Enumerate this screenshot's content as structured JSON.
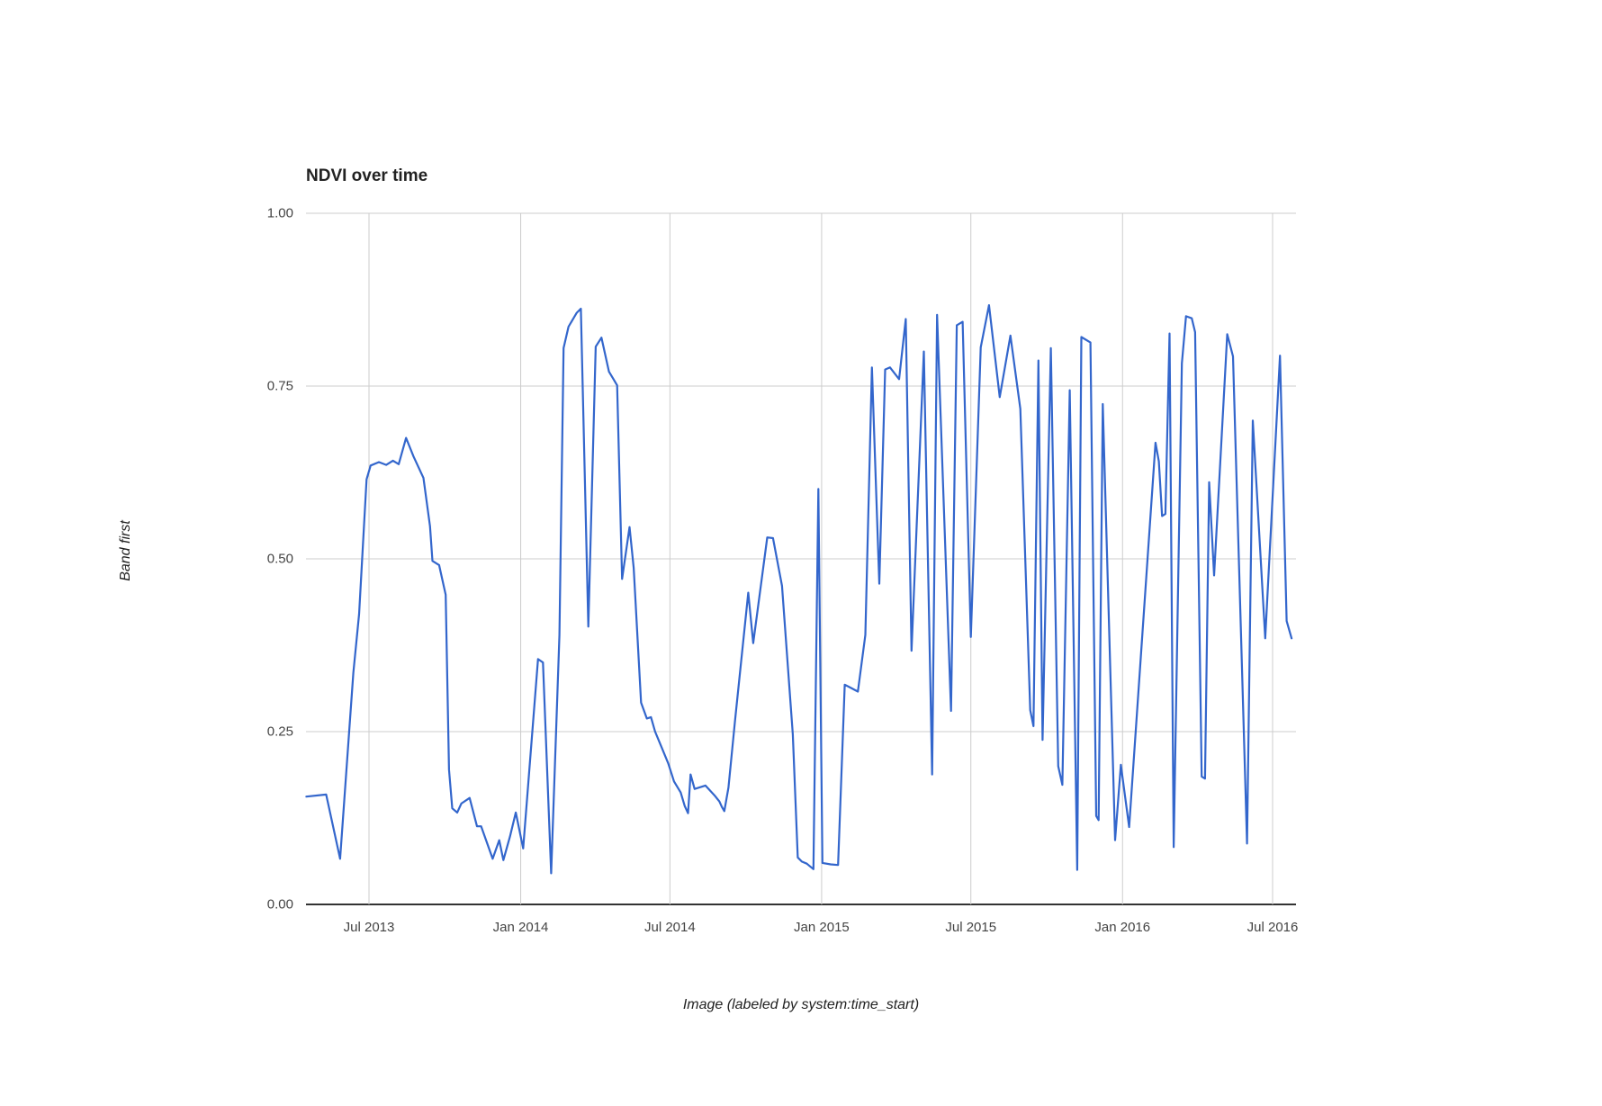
{
  "chart": {
    "title": "NDVI over time",
    "y_axis_title": "Band first",
    "x_axis_title": "Image (labeled by system:time_start)",
    "colors": {
      "line": "#3366cc",
      "grid": "#cccccc",
      "baseline": "#333333",
      "tick_text": "#444444",
      "title_text": "#222222",
      "background": "#ffffff"
    },
    "y_ticks": [
      {
        "label": "0.00",
        "value": 0.0
      },
      {
        "label": "0.25",
        "value": 0.25
      },
      {
        "label": "0.50",
        "value": 0.5
      },
      {
        "label": "0.75",
        "value": 0.75
      },
      {
        "label": "1.00",
        "value": 1.0
      }
    ],
    "x_ticks": [
      {
        "label": "Jul 2013",
        "date": "2013-07-01"
      },
      {
        "label": "Jan 2014",
        "date": "2014-01-01"
      },
      {
        "label": "Jul 2014",
        "date": "2014-07-01"
      },
      {
        "label": "Jan 2015",
        "date": "2015-01-01"
      },
      {
        "label": "Jul 2015",
        "date": "2015-07-01"
      },
      {
        "label": "Jan 2016",
        "date": "2016-01-01"
      },
      {
        "label": "Jul 2016",
        "date": "2016-07-01"
      }
    ]
  },
  "chart_data": {
    "type": "line",
    "title": "NDVI over time",
    "xlabel": "Image (labeled by system:time_start)",
    "ylabel": "Band first",
    "ylim": [
      0,
      1
    ],
    "x_range": [
      "2013-04-10",
      "2016-07-28"
    ],
    "grid": true,
    "legend": "none",
    "series": [
      {
        "name": "first",
        "color": "#3366cc",
        "points": [
          [
            "2013-04-16",
            0.156
          ],
          [
            "2013-05-10",
            0.159
          ],
          [
            "2013-05-27",
            0.066
          ],
          [
            "2013-06-12",
            0.335
          ],
          [
            "2013-06-19",
            0.42
          ],
          [
            "2013-06-28",
            0.615
          ],
          [
            "2013-07-03",
            0.635
          ],
          [
            "2013-07-13",
            0.64
          ],
          [
            "2013-07-22",
            0.636
          ],
          [
            "2013-07-30",
            0.642
          ],
          [
            "2013-08-06",
            0.637
          ],
          [
            "2013-08-15",
            0.675
          ],
          [
            "2013-08-24",
            0.648
          ],
          [
            "2013-09-05",
            0.617
          ],
          [
            "2013-09-13",
            0.547
          ],
          [
            "2013-09-16",
            0.497
          ],
          [
            "2013-09-24",
            0.491
          ],
          [
            "2013-10-02",
            0.448
          ],
          [
            "2013-10-06",
            0.195
          ],
          [
            "2013-10-10",
            0.139
          ],
          [
            "2013-10-16",
            0.133
          ],
          [
            "2013-10-21",
            0.146
          ],
          [
            "2013-10-31",
            0.154
          ],
          [
            "2013-11-09",
            0.113
          ],
          [
            "2013-11-14",
            0.113
          ],
          [
            "2013-11-28",
            0.066
          ],
          [
            "2013-12-06",
            0.093
          ],
          [
            "2013-12-11",
            0.064
          ],
          [
            "2013-12-19",
            0.098
          ],
          [
            "2013-12-26",
            0.133
          ],
          [
            "2014-01-04",
            0.081
          ],
          [
            "2014-01-22",
            0.355
          ],
          [
            "2014-01-28",
            0.35
          ],
          [
            "2014-02-07",
            0.045
          ],
          [
            "2014-02-17",
            0.39
          ],
          [
            "2014-02-22",
            0.805
          ],
          [
            "2014-02-28",
            0.836
          ],
          [
            "2014-03-10",
            0.856
          ],
          [
            "2014-03-15",
            0.862
          ],
          [
            "2014-03-24",
            0.402
          ],
          [
            "2014-04-02",
            0.807
          ],
          [
            "2014-04-09",
            0.82
          ],
          [
            "2014-04-18",
            0.771
          ],
          [
            "2014-04-23",
            0.761
          ],
          [
            "2014-04-28",
            0.751
          ],
          [
            "2014-05-04",
            0.471
          ],
          [
            "2014-05-13",
            0.546
          ],
          [
            "2014-05-18",
            0.487
          ],
          [
            "2014-05-27",
            0.292
          ],
          [
            "2014-06-03",
            0.269
          ],
          [
            "2014-06-08",
            0.271
          ],
          [
            "2014-06-13",
            0.25
          ],
          [
            "2014-06-20",
            0.23
          ],
          [
            "2014-06-29",
            0.204
          ],
          [
            "2014-07-06",
            0.178
          ],
          [
            "2014-07-14",
            0.162
          ],
          [
            "2014-07-19",
            0.142
          ],
          [
            "2014-07-23",
            0.132
          ],
          [
            "2014-07-26",
            0.188
          ],
          [
            "2014-07-31",
            0.167
          ],
          [
            "2014-08-13",
            0.172
          ],
          [
            "2014-08-24",
            0.158
          ],
          [
            "2014-08-30",
            0.149
          ],
          [
            "2014-09-02",
            0.141
          ],
          [
            "2014-09-05",
            0.135
          ],
          [
            "2014-09-10",
            0.169
          ],
          [
            "2014-09-18",
            0.266
          ],
          [
            "2014-10-04",
            0.451
          ],
          [
            "2014-10-10",
            0.378
          ],
          [
            "2014-10-27",
            0.531
          ],
          [
            "2014-11-03",
            0.53
          ],
          [
            "2014-11-14",
            0.461
          ],
          [
            "2014-11-27",
            0.246
          ],
          [
            "2014-12-03",
            0.068
          ],
          [
            "2014-12-08",
            0.062
          ],
          [
            "2014-12-14",
            0.059
          ],
          [
            "2014-12-22",
            0.051
          ],
          [
            "2014-12-28",
            0.601
          ],
          [
            "2015-01-02",
            0.06
          ],
          [
            "2015-01-12",
            0.058
          ],
          [
            "2015-01-21",
            0.057
          ],
          [
            "2015-01-29",
            0.318
          ],
          [
            "2015-02-06",
            0.313
          ],
          [
            "2015-02-14",
            0.308
          ],
          [
            "2015-02-23",
            0.39
          ],
          [
            "2015-03-03",
            0.777
          ],
          [
            "2015-03-12",
            0.464
          ],
          [
            "2015-03-19",
            0.774
          ],
          [
            "2015-03-25",
            0.777
          ],
          [
            "2015-04-05",
            0.76
          ],
          [
            "2015-04-13",
            0.847
          ],
          [
            "2015-04-20",
            0.367
          ],
          [
            "2015-05-05",
            0.8
          ],
          [
            "2015-05-15",
            0.188
          ],
          [
            "2015-05-21",
            0.853
          ],
          [
            "2015-06-07",
            0.28
          ],
          [
            "2015-06-14",
            0.838
          ],
          [
            "2015-06-21",
            0.843
          ],
          [
            "2015-07-01",
            0.387
          ],
          [
            "2015-07-13",
            0.806
          ],
          [
            "2015-07-23",
            0.867
          ],
          [
            "2015-08-05",
            0.734
          ],
          [
            "2015-08-18",
            0.823
          ],
          [
            "2015-08-30",
            0.717
          ],
          [
            "2015-09-11",
            0.281
          ],
          [
            "2015-09-15",
            0.258
          ],
          [
            "2015-09-21",
            0.787
          ],
          [
            "2015-09-26",
            0.238
          ],
          [
            "2015-10-06",
            0.805
          ],
          [
            "2015-10-15",
            0.2
          ],
          [
            "2015-10-20",
            0.173
          ],
          [
            "2015-10-29",
            0.744
          ],
          [
            "2015-11-07",
            0.05
          ],
          [
            "2015-11-12",
            0.821
          ],
          [
            "2015-11-23",
            0.813
          ],
          [
            "2015-11-30",
            0.128
          ],
          [
            "2015-12-03",
            0.122
          ],
          [
            "2015-12-08",
            0.724
          ],
          [
            "2015-12-23",
            0.093
          ],
          [
            "2015-12-30",
            0.202
          ],
          [
            "2016-01-09",
            0.112
          ],
          [
            "2016-02-10",
            0.668
          ],
          [
            "2016-02-14",
            0.641
          ],
          [
            "2016-02-18",
            0.562
          ],
          [
            "2016-02-22",
            0.565
          ],
          [
            "2016-02-27",
            0.826
          ],
          [
            "2016-03-03",
            0.083
          ],
          [
            "2016-03-13",
            0.783
          ],
          [
            "2016-03-18",
            0.851
          ],
          [
            "2016-03-25",
            0.848
          ],
          [
            "2016-03-29",
            0.828
          ],
          [
            "2016-04-06",
            0.185
          ],
          [
            "2016-04-10",
            0.182
          ],
          [
            "2016-04-15",
            0.611
          ],
          [
            "2016-04-21",
            0.476
          ],
          [
            "2016-05-07",
            0.825
          ],
          [
            "2016-05-14",
            0.793
          ],
          [
            "2016-05-31",
            0.088
          ],
          [
            "2016-06-07",
            0.7
          ],
          [
            "2016-06-22",
            0.385
          ],
          [
            "2016-07-10",
            0.794
          ],
          [
            "2016-07-18",
            0.41
          ],
          [
            "2016-07-24",
            0.385
          ]
        ]
      }
    ]
  }
}
